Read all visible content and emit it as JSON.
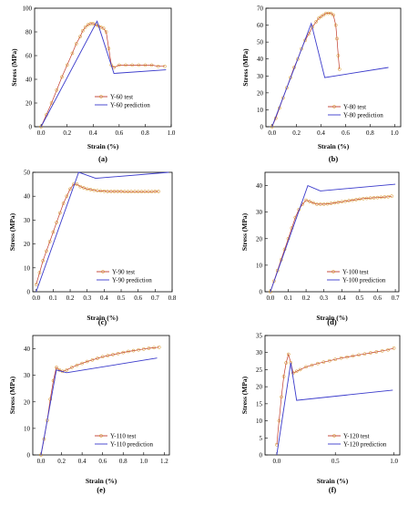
{
  "chart_data": [
    {
      "type": "line",
      "panel_label": "(a)",
      "xlabel": "Strain (%)",
      "ylabel": "Stress (MPa)",
      "xlim": [
        -0.05,
        1.0
      ],
      "ylim": [
        0,
        100
      ],
      "xticks": [
        0.0,
        0.2,
        0.4,
        0.6,
        0.8,
        1.0
      ],
      "xticklabels": [
        "0.0",
        "0.2",
        "0.4",
        "0.6",
        "0.8",
        "1.0"
      ],
      "yticks": [
        0,
        20,
        40,
        60,
        80,
        100
      ],
      "yticklabels": [
        "0",
        "20",
        "40",
        "60",
        "80",
        "100"
      ],
      "legend_position": "right",
      "series": [
        {
          "name": "Y-60 test",
          "color": "#c0392b",
          "marker": "circle",
          "x": [
            0.0,
            0.04,
            0.08,
            0.12,
            0.16,
            0.2,
            0.24,
            0.27,
            0.3,
            0.32,
            0.34,
            0.36,
            0.38,
            0.4,
            0.42,
            0.44,
            0.46,
            0.48,
            0.5,
            0.52,
            0.54,
            0.56,
            0.6,
            0.65,
            0.7,
            0.75,
            0.8,
            0.85,
            0.9,
            0.95
          ],
          "y": [
            0,
            10,
            20,
            31,
            42,
            52,
            62,
            70,
            76,
            81,
            84,
            86,
            87,
            87,
            86,
            85,
            84,
            83,
            80,
            66,
            52,
            50,
            52,
            52,
            52,
            52,
            52,
            52,
            51,
            51
          ]
        },
        {
          "name": "Y-60 prediction",
          "color": "#3a3acb",
          "x": [
            0.0,
            0.43,
            0.56,
            0.96
          ],
          "y": [
            0,
            89,
            45,
            48
          ]
        }
      ]
    },
    {
      "type": "line",
      "panel_label": "(b)",
      "xlabel": "Strain (%)",
      "ylabel": "Stress (MPa)",
      "xlim": [
        -0.05,
        1.05
      ],
      "ylim": [
        0,
        70
      ],
      "xticks": [
        0.0,
        0.2,
        0.4,
        0.6,
        0.8,
        1.0
      ],
      "xticklabels": [
        "0.0",
        "0.2",
        "0.4",
        "0.6",
        "0.8",
        "1.0"
      ],
      "yticks": [
        0,
        10,
        20,
        30,
        40,
        50,
        60,
        70
      ],
      "yticklabels": [
        "0",
        "10",
        "20",
        "30",
        "40",
        "50",
        "60",
        "70"
      ],
      "legend_position": "right",
      "series": [
        {
          "name": "Y-80 test",
          "color": "#c0392b",
          "marker": "circle",
          "x": [
            0.0,
            0.03,
            0.06,
            0.09,
            0.12,
            0.15,
            0.18,
            0.21,
            0.24,
            0.27,
            0.3,
            0.33,
            0.36,
            0.38,
            0.4,
            0.42,
            0.44,
            0.46,
            0.48,
            0.5,
            0.52,
            0.53,
            0.54,
            0.55
          ],
          "y": [
            0,
            5,
            11,
            17,
            23,
            29,
            35,
            40,
            46,
            51,
            55,
            59,
            62,
            64,
            65,
            66,
            67,
            67,
            67,
            66,
            60,
            52,
            42,
            34
          ]
        },
        {
          "name": "Y-80 prediction",
          "color": "#3a3acb",
          "x": [
            0.0,
            0.32,
            0.43,
            0.95
          ],
          "y": [
            0,
            61,
            29,
            35
          ]
        }
      ]
    },
    {
      "type": "line",
      "panel_label": "(c)",
      "xlabel": "Strain (%)",
      "ylabel": "Stress (MPa)",
      "xlim": [
        -0.02,
        0.8
      ],
      "ylim": [
        0,
        50
      ],
      "xticks": [
        0.0,
        0.1,
        0.2,
        0.3,
        0.4,
        0.5,
        0.6,
        0.7,
        0.8
      ],
      "xticklabels": [
        "0.0",
        "0.1",
        "0.2",
        "0.3",
        "0.4",
        "0.5",
        "0.6",
        "0.7",
        "0.8"
      ],
      "yticks": [
        0,
        10,
        20,
        30,
        40,
        50
      ],
      "yticklabels": [
        "0",
        "10",
        "20",
        "30",
        "40",
        "50"
      ],
      "legend_position": "bottom-right",
      "series": [
        {
          "name": "Y-90 test",
          "color": "#c0392b",
          "marker": "circle",
          "x": [
            0.0,
            0.02,
            0.04,
            0.06,
            0.08,
            0.1,
            0.12,
            0.14,
            0.16,
            0.18,
            0.2,
            0.22,
            0.24,
            0.26,
            0.28,
            0.3,
            0.32,
            0.34,
            0.36,
            0.38,
            0.4,
            0.42,
            0.44,
            0.46,
            0.48,
            0.5,
            0.52,
            0.54,
            0.56,
            0.58,
            0.6,
            0.62,
            0.64,
            0.66,
            0.68,
            0.7,
            0.72
          ],
          "y": [
            3,
            8,
            13,
            17,
            21,
            25,
            29,
            33,
            37,
            40,
            43,
            45,
            45,
            44,
            43.5,
            43,
            42.8,
            42.5,
            42.3,
            42.2,
            42.1,
            42,
            42,
            42,
            42,
            42,
            41.9,
            41.9,
            41.9,
            41.9,
            41.9,
            41.9,
            41.9,
            41.9,
            41.9,
            42,
            42
          ]
        },
        {
          "name": "Y-90 prediction",
          "color": "#3a3acb",
          "x": [
            0.0,
            0.25,
            0.35,
            0.78
          ],
          "y": [
            0,
            50,
            47.5,
            50
          ]
        }
      ]
    },
    {
      "type": "line",
      "panel_label": "(d)",
      "xlabel": "Strain (%)",
      "ylabel": "Stress (MPa)",
      "xlim": [
        -0.03,
        0.72
      ],
      "ylim": [
        0,
        45
      ],
      "xticks": [
        0.0,
        0.1,
        0.2,
        0.3,
        0.4,
        0.5,
        0.6,
        0.7
      ],
      "xticklabels": [
        "0.0",
        "0.1",
        "0.2",
        "0.3",
        "0.4",
        "0.5",
        "0.6",
        "0.7"
      ],
      "yticks": [
        0,
        10,
        20,
        30,
        40
      ],
      "yticklabels": [
        "0",
        "10",
        "20",
        "30",
        "40"
      ],
      "legend_position": "bottom-right",
      "series": [
        {
          "name": "Y-100 test",
          "color": "#c0392b",
          "marker": "circle",
          "x": [
            0.0,
            0.02,
            0.04,
            0.06,
            0.08,
            0.1,
            0.12,
            0.14,
            0.16,
            0.18,
            0.2,
            0.22,
            0.24,
            0.26,
            0.28,
            0.3,
            0.32,
            0.34,
            0.36,
            0.38,
            0.4,
            0.42,
            0.44,
            0.46,
            0.48,
            0.5,
            0.52,
            0.54,
            0.56,
            0.58,
            0.6,
            0.62,
            0.64,
            0.66,
            0.68
          ],
          "y": [
            0,
            4,
            8,
            12,
            16,
            20,
            24,
            28,
            31,
            33,
            34.5,
            34,
            33.5,
            33,
            33,
            33,
            33.1,
            33.3,
            33.5,
            33.7,
            33.9,
            34.1,
            34.3,
            34.5,
            34.7,
            34.9,
            35.1,
            35.2,
            35.3,
            35.4,
            35.5,
            35.6,
            35.7,
            35.8,
            36
          ]
        },
        {
          "name": "Y-100 prediction",
          "color": "#3a3acb",
          "x": [
            0.0,
            0.21,
            0.28,
            0.7
          ],
          "y": [
            0,
            40,
            38,
            40.5
          ]
        }
      ]
    },
    {
      "type": "line",
      "panel_label": "(e)",
      "xlabel": "Strain (%)",
      "ylabel": "Stress (MPa)",
      "xlim": [
        -0.08,
        1.25
      ],
      "ylim": [
        0,
        45
      ],
      "xticks": [
        0.0,
        0.2,
        0.4,
        0.6,
        0.8,
        1.0,
        1.2
      ],
      "xticklabels": [
        "0.0",
        "0.2",
        "0.4",
        "0.6",
        "0.8",
        "1.0",
        "1.2"
      ],
      "yticks": [
        0,
        10,
        20,
        30,
        40
      ],
      "yticklabels": [
        "0",
        "10",
        "20",
        "30",
        "40"
      ],
      "legend_position": "bottom-right",
      "series": [
        {
          "name": "Y-110 test",
          "color": "#c0392b",
          "marker": "circle",
          "x": [
            0.0,
            0.03,
            0.06,
            0.09,
            0.12,
            0.15,
            0.18,
            0.21,
            0.25,
            0.3,
            0.35,
            0.4,
            0.45,
            0.5,
            0.55,
            0.6,
            0.65,
            0.7,
            0.75,
            0.8,
            0.85,
            0.9,
            0.95,
            1.0,
            1.05,
            1.1,
            1.15
          ],
          "y": [
            0,
            6,
            13,
            21,
            28,
            33,
            32,
            31.5,
            32,
            33,
            33.8,
            34.5,
            35.2,
            35.8,
            36.4,
            37,
            37.4,
            37.8,
            38.2,
            38.6,
            39,
            39.3,
            39.6,
            39.9,
            40.2,
            40.4,
            40.6
          ]
        },
        {
          "name": "Y-110 prediction",
          "color": "#3a3acb",
          "x": [
            0.0,
            0.15,
            0.25,
            1.13
          ],
          "y": [
            0,
            32,
            31,
            36.5
          ]
        }
      ]
    },
    {
      "type": "line",
      "panel_label": "(f)",
      "xlabel": "Strain (%)",
      "ylabel": "Stress (MPa)",
      "xlim": [
        -0.1,
        1.05
      ],
      "ylim": [
        0,
        35
      ],
      "xticks": [
        0.0,
        0.5,
        1.0
      ],
      "xticklabels": [
        "0.0",
        "0.5",
        "1.0"
      ],
      "yticks": [
        0,
        5,
        10,
        15,
        20,
        25,
        30,
        35
      ],
      "yticklabels": [
        "0",
        "5",
        "10",
        "15",
        "20",
        "25",
        "30",
        "35"
      ],
      "legend_position": "bottom-right",
      "series": [
        {
          "name": "Y-120 test",
          "color": "#c0392b",
          "marker": "circle",
          "x": [
            0.0,
            0.02,
            0.04,
            0.06,
            0.08,
            0.1,
            0.12,
            0.14,
            0.17,
            0.2,
            0.25,
            0.3,
            0.35,
            0.4,
            0.45,
            0.5,
            0.55,
            0.6,
            0.65,
            0.7,
            0.75,
            0.8,
            0.85,
            0.9,
            0.95,
            1.0
          ],
          "y": [
            3,
            10,
            17,
            23,
            27,
            29.5,
            27,
            24,
            24.5,
            25,
            25.8,
            26.3,
            26.8,
            27.2,
            27.6,
            28,
            28.4,
            28.7,
            29,
            29.3,
            29.6,
            29.9,
            30.2,
            30.5,
            30.8,
            31.3
          ]
        },
        {
          "name": "Y-120 prediction",
          "color": "#3a3acb",
          "x": [
            0.0,
            0.12,
            0.17,
            0.99
          ],
          "y": [
            0,
            27,
            16,
            19
          ]
        }
      ]
    }
  ]
}
